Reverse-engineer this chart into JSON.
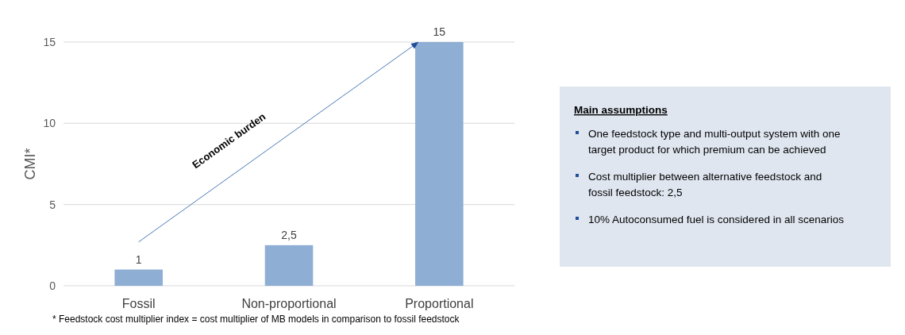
{
  "chart_data": {
    "type": "bar",
    "ylabel": "CMI*",
    "categories": [
      "Fossil",
      "Non-proportional",
      "Proportional"
    ],
    "values": [
      1,
      2.5,
      15
    ],
    "value_labels": [
      "1",
      "2,5",
      "15"
    ],
    "color": "#8eaed4",
    "ylim": [
      0,
      15
    ],
    "yticks": [
      0,
      5,
      10,
      15
    ],
    "grid": "y",
    "annotations": [
      "Economic burden",
      "* Feedstock cost multiplier index = cost multiplier of MB models in comparison to fossil feedstock",
      "Main assumptions",
      "One feedstock type and multi-output system with one target product for which premium can be achieved",
      "Cost multiplier between alternative feedstock and fossil feedstock: 2,5",
      "10% Autoconsumed fuel is considered in all scenarios"
    ]
  }
}
